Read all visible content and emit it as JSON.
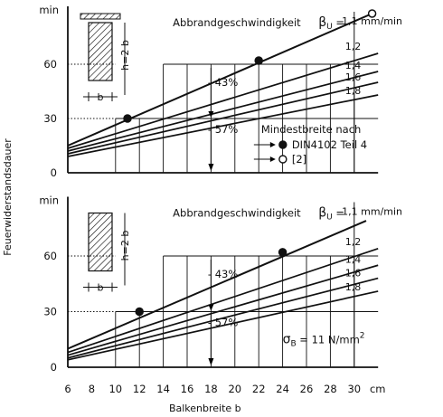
{
  "figure": {
    "ylabel": "Feuerwiderstandsdauer",
    "xlabel": "Balkenbreite  b",
    "x_unit": "cm",
    "x_ticks": [
      "6",
      "8",
      "10",
      "12",
      "14",
      "16",
      "18",
      "20",
      "22",
      "24",
      "26",
      "28",
      "30"
    ],
    "y_unit": "min",
    "y_ticks": [
      "0",
      "30",
      "60"
    ]
  },
  "chart_data": [
    {
      "type": "line",
      "panel": "top",
      "xlim": [
        6,
        32
      ],
      "ylim": [
        0,
        90
      ],
      "title": "Abbrandgeschwindigkeit",
      "beta_symbol": "β",
      "beta_sub": "U",
      "beta_eq": "=",
      "sketch_text": {
        "h": "h=2 b",
        "b": "b"
      },
      "series": [
        {
          "name": "1,1 mm/min",
          "points": [
            [
              6,
              15
            ],
            [
              31.5,
              88
            ]
          ]
        },
        {
          "name": "1,2",
          "points": [
            [
              6,
              13.5
            ],
            [
              32,
              66
            ]
          ]
        },
        {
          "name": "1,4",
          "points": [
            [
              6,
              12
            ],
            [
              32,
              56
            ]
          ]
        },
        {
          "name": "1,6",
          "points": [
            [
              6,
              10.5
            ],
            [
              32,
              50
            ]
          ]
        },
        {
          "name": "1,8",
          "points": [
            [
              6,
              9
            ],
            [
              32,
              43
            ]
          ]
        }
      ],
      "markers": [
        {
          "x": 11,
          "y": 30,
          "style": "filled"
        },
        {
          "x": 22,
          "y": 62,
          "style": "filled"
        },
        {
          "x": 31.5,
          "y": 88,
          "style": "open"
        }
      ],
      "reduction_labels": [
        "- 43%",
        "- 57%"
      ],
      "legend": {
        "title": "Mindestbreite  nach",
        "entries": [
          {
            "symbol": "filled",
            "label": "DIN4102  Teil 4"
          },
          {
            "symbol": "open",
            "label": "[2]"
          }
        ]
      }
    },
    {
      "type": "line",
      "panel": "bottom",
      "xlim": [
        6,
        32
      ],
      "ylim": [
        0,
        90
      ],
      "title": "Abbrandgeschwindigkeit",
      "beta_symbol": "β",
      "beta_sub": "U",
      "beta_eq": "=",
      "sketch_text": {
        "h": "h=2 b",
        "b": "b"
      },
      "series": [
        {
          "name": "1,1 mm/min",
          "points": [
            [
              6,
              10
            ],
            [
              31,
              79
            ]
          ]
        },
        {
          "name": "1,2",
          "points": [
            [
              6,
              8
            ],
            [
              32,
              64
            ]
          ]
        },
        {
          "name": "1,4",
          "points": [
            [
              6,
              6.5
            ],
            [
              32,
              55
            ]
          ]
        },
        {
          "name": "1,6",
          "points": [
            [
              6,
              5
            ],
            [
              32,
              48
            ]
          ]
        },
        {
          "name": "1,8",
          "points": [
            [
              6,
              4
            ],
            [
              32,
              41
            ]
          ]
        }
      ],
      "markers": [
        {
          "x": 12,
          "y": 30,
          "style": "filled"
        },
        {
          "x": 24,
          "y": 62,
          "style": "filled"
        }
      ],
      "reduction_labels": [
        "- 43%",
        "- 57%"
      ],
      "stress_symbol": "σ",
      "stress_sub": "B",
      "stress_value": "=  11 N/mm",
      "stress_sup": "2"
    }
  ]
}
